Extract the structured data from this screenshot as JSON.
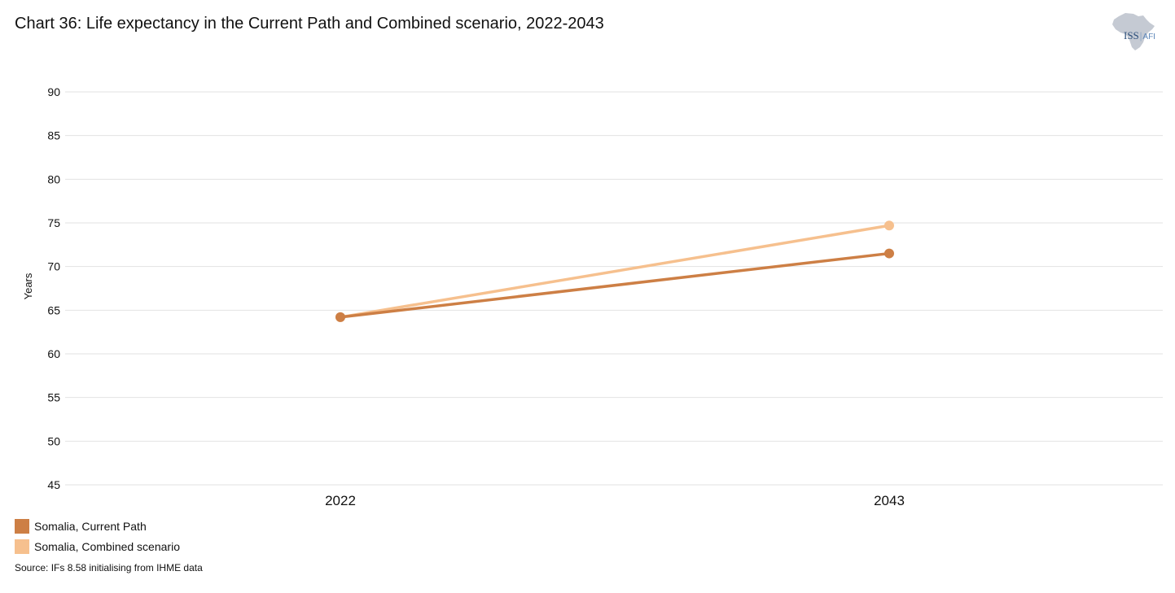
{
  "header": {
    "title": "Chart 36: Life expectancy in the Current Path and Combined scenario, 2022-2043"
  },
  "logo": {
    "icon": "africa-map-icon",
    "brand": "ISS",
    "suffix": "AFI",
    "map_color": "#c5cad3",
    "brand_color": "#2c4e7a"
  },
  "chart_data": {
    "type": "line",
    "title": "Chart 36: Life expectancy in the Current Path and Combined scenario, 2022-2043",
    "xlabel": "",
    "ylabel": "Years",
    "x": [
      "2022",
      "2043"
    ],
    "ylim": [
      45,
      90
    ],
    "yticks": [
      90,
      85,
      80,
      75,
      70,
      65,
      60,
      55,
      50,
      45
    ],
    "grid": true,
    "legend_position": "bottom-left",
    "series": [
      {
        "name": "Somalia, Current Path",
        "color": "#cd7f45",
        "values": [
          64.2,
          71.5
        ]
      },
      {
        "name": "Somalia, Combined scenario",
        "color": "#f6c08e",
        "values": [
          64.2,
          74.7
        ]
      }
    ]
  },
  "footer": {
    "source": "Source: IFs 8.58 initialising from IHME data"
  }
}
